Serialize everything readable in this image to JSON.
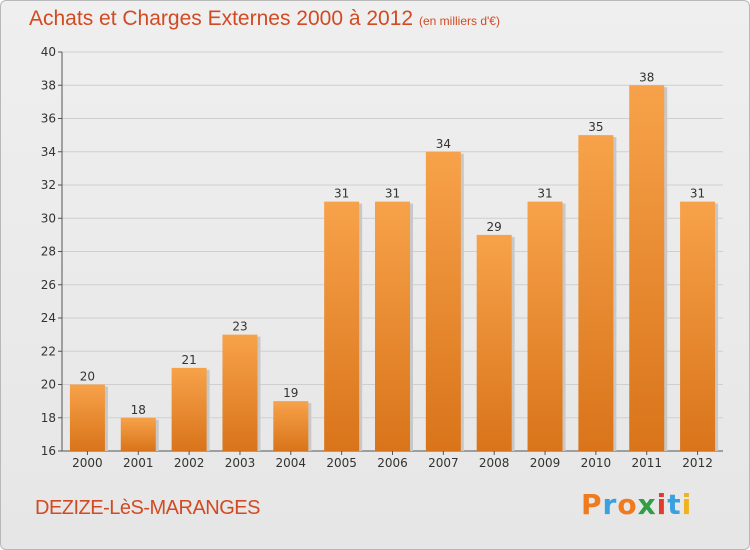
{
  "title": "Achats et Charges Externes 2000 à 2012",
  "subtitle": "(en milliers d'€)",
  "place": "DEZIZE-LèS-MARANGES",
  "brand": {
    "letters": [
      "P",
      "r",
      "o",
      "x",
      "i",
      "t",
      "i"
    ],
    "colors": [
      "#f07b1e",
      "#3aa0e0",
      "#f07b1e",
      "#2f9e44",
      "#e23b2e",
      "#3aa0e0",
      "#f0b21e"
    ]
  },
  "colors": {
    "bar_top": "#f7a24a",
    "bar_bottom": "#d9741a",
    "title": "#d24a22"
  },
  "chart_data": {
    "type": "bar",
    "title": "Achats et Charges Externes 2000 à 2012",
    "subtitle": "(en milliers d'€)",
    "categories": [
      "2000",
      "2001",
      "2002",
      "2003",
      "2004",
      "2005",
      "2006",
      "2007",
      "2008",
      "2009",
      "2010",
      "2011",
      "2012"
    ],
    "values": [
      20,
      18,
      21,
      23,
      19,
      31,
      31,
      34,
      29,
      31,
      35,
      38,
      31
    ],
    "value_labels": [
      "20",
      "18",
      "21",
      "23",
      "19",
      "31",
      "31",
      "34",
      "29",
      "31",
      "35",
      "38",
      "31"
    ],
    "ylim": [
      16,
      40
    ],
    "yticks": [
      16,
      18,
      20,
      22,
      24,
      26,
      28,
      30,
      32,
      34,
      36,
      38,
      40
    ],
    "ytick_labels": [
      "16",
      "18",
      "20",
      "22",
      "24",
      "26",
      "28",
      "30",
      "32",
      "34",
      "36",
      "38",
      "40"
    ],
    "grid": true,
    "xlabel": "",
    "ylabel": ""
  }
}
